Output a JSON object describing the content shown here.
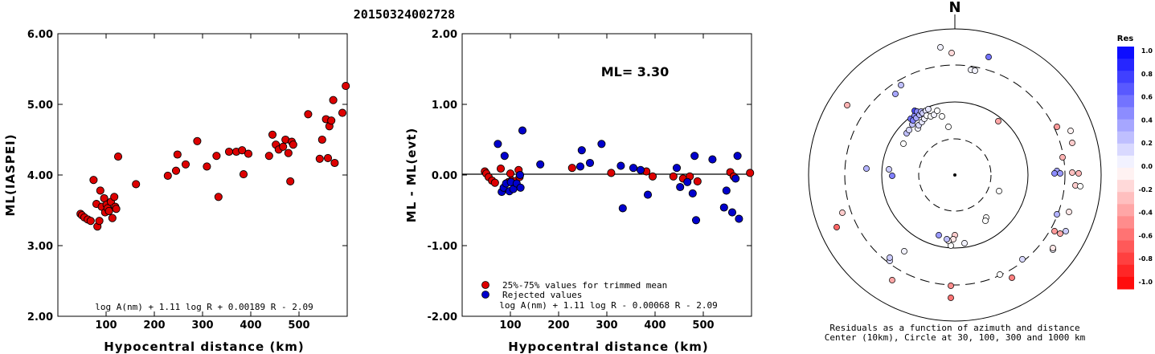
{
  "event_title": "20150324002728",
  "chart_data": [
    {
      "type": "scatter",
      "xlabel": "Hypocentral distance (km)",
      "ylabel": "ML(IASPEI)",
      "xlim": [
        0,
        600
      ],
      "ylim": [
        2.0,
        6.0
      ],
      "x_ticks": [
        "100",
        "200",
        "300",
        "400",
        "500"
      ],
      "y_ticks": [
        "2.00",
        "3.00",
        "4.00",
        "5.00",
        "6.00"
      ],
      "formula": "log A(nm) + 1.11 log R + 0.00189 R - 2.09",
      "marker_color": "#dd0000",
      "points": [
        [
          47,
          3.45
        ],
        [
          50,
          3.43
        ],
        [
          55,
          3.4
        ],
        [
          62,
          3.37
        ],
        [
          68,
          3.35
        ],
        [
          74,
          3.93
        ],
        [
          80,
          3.59
        ],
        [
          82,
          3.27
        ],
        [
          86,
          3.35
        ],
        [
          88,
          3.78
        ],
        [
          91,
          3.55
        ],
        [
          96,
          3.67
        ],
        [
          98,
          3.47
        ],
        [
          101,
          3.58
        ],
        [
          103,
          3.53
        ],
        [
          106,
          3.49
        ],
        [
          110,
          3.62
        ],
        [
          113,
          3.39
        ],
        [
          117,
          3.69
        ],
        [
          119,
          3.55
        ],
        [
          121,
          3.52
        ],
        [
          125,
          4.26
        ],
        [
          162,
          3.87
        ],
        [
          228,
          3.99
        ],
        [
          245,
          4.06
        ],
        [
          248,
          4.29
        ],
        [
          265,
          4.15
        ],
        [
          289,
          4.48
        ],
        [
          309,
          4.12
        ],
        [
          329,
          4.27
        ],
        [
          333,
          3.69
        ],
        [
          355,
          4.33
        ],
        [
          370,
          4.33
        ],
        [
          382,
          4.35
        ],
        [
          385,
          4.01
        ],
        [
          395,
          4.3
        ],
        [
          438,
          4.27
        ],
        [
          445,
          4.57
        ],
        [
          452,
          4.43
        ],
        [
          458,
          4.36
        ],
        [
          467,
          4.4
        ],
        [
          472,
          4.5
        ],
        [
          478,
          4.31
        ],
        [
          482,
          3.91
        ],
        [
          485,
          4.47
        ],
        [
          488,
          4.43
        ],
        [
          519,
          4.86
        ],
        [
          543,
          4.23
        ],
        [
          548,
          4.5
        ],
        [
          556,
          4.79
        ],
        [
          560,
          4.24
        ],
        [
          563,
          4.69
        ],
        [
          567,
          4.77
        ],
        [
          571,
          5.06
        ],
        [
          574,
          4.17
        ],
        [
          590,
          4.88
        ],
        [
          597,
          5.26
        ]
      ]
    },
    {
      "type": "scatter",
      "xlabel": "Hypocentral distance (km)",
      "ylabel": "ML - ML(evt)",
      "xlim": [
        0,
        600
      ],
      "ylim": [
        -2.0,
        2.0
      ],
      "x_ticks": [
        "100",
        "200",
        "300",
        "400",
        "500"
      ],
      "y_ticks": [
        "-2.00",
        "-1.00",
        "0.00",
        "1.00",
        "2.00"
      ],
      "annotation": "ML= 3.30",
      "formula": "log A(nm) + 1.11 log R - 0.00068 R - 2.09",
      "series": [
        {
          "name": "25%-75% values for trimmed mean",
          "color": "#dd0000",
          "points": [
            [
              47,
              0.05
            ],
            [
              50,
              0.02
            ],
            [
              55,
              -0.03
            ],
            [
              62,
              -0.08
            ],
            [
              68,
              -0.11
            ],
            [
              80,
              0.09
            ],
            [
              96,
              -0.1
            ],
            [
              100,
              0.02
            ],
            [
              103,
              -0.08
            ],
            [
              110,
              -0.09
            ],
            [
              117,
              0.07
            ],
            [
              119,
              -0.03
            ],
            [
              228,
              0.1
            ],
            [
              309,
              0.03
            ],
            [
              382,
              0.05
            ],
            [
              395,
              -0.02
            ],
            [
              438,
              -0.02
            ],
            [
              458,
              -0.05
            ],
            [
              472,
              -0.02
            ],
            [
              488,
              -0.09
            ],
            [
              556,
              0.04
            ],
            [
              563,
              -0.02
            ],
            [
              597,
              0.03
            ]
          ]
        },
        {
          "name": "Rejected values",
          "color": "#0000cc",
          "points": [
            [
              74,
              0.44
            ],
            [
              82,
              -0.24
            ],
            [
              86,
              -0.18
            ],
            [
              88,
              0.27
            ],
            [
              91,
              -0.12
            ],
            [
              98,
              -0.23
            ],
            [
              101,
              -0.1
            ],
            [
              106,
              -0.2
            ],
            [
              113,
              -0.12
            ],
            [
              120,
              0.0
            ],
            [
              121,
              -0.18
            ],
            [
              125,
              0.63
            ],
            [
              162,
              0.15
            ],
            [
              245,
              0.12
            ],
            [
              248,
              0.35
            ],
            [
              265,
              0.17
            ],
            [
              289,
              0.44
            ],
            [
              329,
              0.13
            ],
            [
              333,
              -0.47
            ],
            [
              355,
              0.1
            ],
            [
              370,
              0.07
            ],
            [
              385,
              -0.28
            ],
            [
              445,
              0.1
            ],
            [
              452,
              -0.17
            ],
            [
              467,
              -0.1
            ],
            [
              478,
              -0.26
            ],
            [
              482,
              0.27
            ],
            [
              485,
              -0.64
            ],
            [
              519,
              0.22
            ],
            [
              543,
              -0.46
            ],
            [
              548,
              -0.22
            ],
            [
              560,
              -0.53
            ],
            [
              567,
              -0.05
            ],
            [
              571,
              0.27
            ],
            [
              574,
              -0.62
            ]
          ]
        }
      ]
    },
    {
      "type": "polar_scatter",
      "north_label": "N",
      "caption_line1": "Residuals as a function of azimuth and distance",
      "caption_line2": "Center (10km), Circle at 30, 100, 300 and 1000 km",
      "colorbar_title": "Res",
      "colorbar_labels": [
        "1.0",
        "0.8",
        "0.6",
        "0.4",
        "0.2",
        "0.0",
        "-0.2",
        "-0.4",
        "-0.6",
        "-0.8",
        "-1.0"
      ],
      "positive_color": "#0000ff",
      "negative_color": "#ff0000",
      "points": [
        [
          -18,
          -159,
          0.05
        ],
        [
          -4,
          -152,
          -0.15
        ],
        [
          20,
          -131,
          0.05
        ],
        [
          25,
          -130,
          0.05
        ],
        [
          42,
          -147,
          0.55
        ],
        [
          -74,
          -101,
          0.35
        ],
        [
          -67,
          -112,
          0.25
        ],
        [
          -134,
          -87,
          -0.3
        ],
        [
          -64,
          -39,
          0.0
        ],
        [
          -60,
          -52,
          0.25
        ],
        [
          -57,
          -56,
          0.15
        ],
        [
          -55,
          -70,
          0.55
        ],
        [
          -53,
          -63,
          0.25
        ],
        [
          -52,
          -68,
          0.5
        ],
        [
          -50,
          -74,
          0.45
        ],
        [
          -50,
          -80,
          0.7
        ],
        [
          -48,
          -71,
          0.35
        ],
        [
          -47,
          -79,
          0.45
        ],
        [
          -46,
          -58,
          0.05
        ],
        [
          -45,
          -62,
          0.15
        ],
        [
          -44,
          -75,
          0.3
        ],
        [
          -42,
          -79,
          0.3
        ],
        [
          -41,
          -66,
          0.1
        ],
        [
          -40,
          -77,
          0.2
        ],
        [
          -38,
          -70,
          0.05
        ],
        [
          -36,
          -80,
          0.1
        ],
        [
          -35,
          -74,
          0.0
        ],
        [
          -33,
          -82,
          0.1
        ],
        [
          -30,
          -73,
          0.0
        ],
        [
          -26,
          -75,
          0.05
        ],
        [
          -22,
          -80,
          0.0
        ],
        [
          -16,
          -73,
          0.0
        ],
        [
          -8,
          -60,
          0.0
        ],
        [
          54,
          -67,
          -0.35
        ],
        [
          -82,
          -7,
          0.2
        ],
        [
          -110,
          -8,
          0.3
        ],
        [
          -78,
          1,
          0.5
        ],
        [
          134,
          -22,
          -0.3
        ],
        [
          146,
          -40,
          -0.2
        ],
        [
          144,
          -55,
          -0.05
        ],
        [
          127,
          -60,
          -0.4
        ],
        [
          127,
          -5,
          0.35
        ],
        [
          131,
          -2,
          0.4
        ],
        [
          146,
          -3,
          -0.25
        ],
        [
          154,
          -2,
          -0.3
        ],
        [
          150,
          13,
          -0.2
        ],
        [
          156,
          14,
          0.0
        ],
        [
          124,
          -2,
          0.45
        ],
        [
          55,
          20,
          0.0
        ],
        [
          39,
          53,
          0.0
        ],
        [
          38,
          57,
          0.0
        ],
        [
          12,
          85,
          0.05
        ],
        [
          0,
          75,
          -0.2
        ],
        [
          -2,
          80,
          -0.1
        ],
        [
          -5,
          88,
          0.0
        ],
        [
          -8,
          82,
          -0.05
        ],
        [
          -20,
          75,
          0.4
        ],
        [
          -10,
          80,
          0.25
        ],
        [
          -63,
          95,
          0.05
        ],
        [
          -81,
          107,
          0.15
        ],
        [
          -78,
          131,
          -0.35
        ],
        [
          -5,
          138,
          -0.45
        ],
        [
          -5,
          153,
          -0.55
        ],
        [
          71,
          128,
          -0.5
        ],
        [
          56,
          124,
          0.0
        ],
        [
          84,
          105,
          0.15
        ],
        [
          122,
          93,
          0.05
        ],
        [
          127,
          49,
          0.3
        ],
        [
          138,
          70,
          0.2
        ],
        [
          124,
          70,
          -0.4
        ],
        [
          131,
          73,
          -0.35
        ],
        [
          142,
          46,
          -0.1
        ],
        [
          122,
          91,
          -0.1
        ],
        [
          -140,
          47,
          -0.2
        ],
        [
          -147,
          65,
          -0.6
        ],
        [
          -81,
          103,
          0.2
        ]
      ]
    }
  ]
}
